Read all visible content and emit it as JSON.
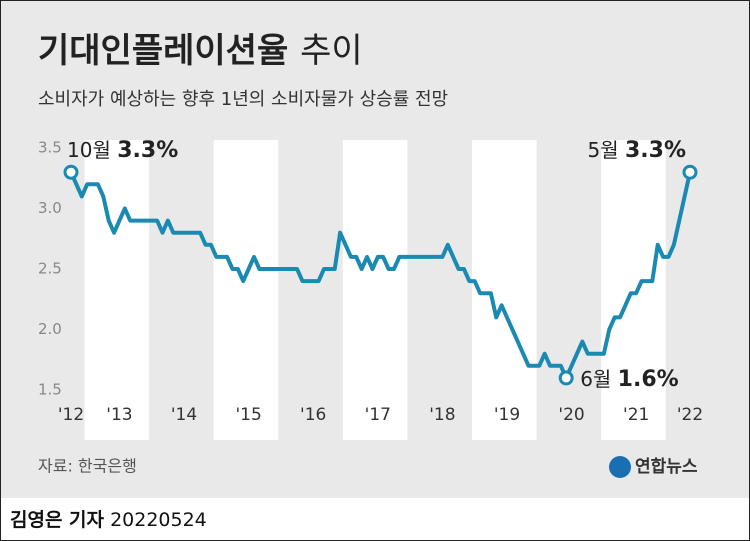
{
  "chart_data": {
    "type": "line",
    "title": "기대인플레이션율",
    "title_suffix": "추이",
    "subtitle": "소비자가 예상하는 향후 1년의 소비자물가 상승률 전망",
    "source": "자료: 한국은행",
    "logo": "연합뉴스",
    "color": "#1a8ab3",
    "ylim": [
      1.5,
      3.5
    ],
    "yticks": [
      1.5,
      {
        "value": 2,
        "label": "2.0"
      },
      2.5,
      {
        "value": 3,
        "label": "3.0"
      },
      3.5
    ],
    "categories": [
      "'12",
      null,
      null,
      null,
      null,
      null,
      null,
      null,
      null,
      "'13",
      null,
      null,
      null,
      null,
      null,
      null,
      null,
      null,
      null,
      null,
      null,
      "'14",
      null,
      null,
      null,
      null,
      null,
      null,
      null,
      null,
      null,
      null,
      null,
      "'15",
      null,
      null,
      null,
      null,
      null,
      null,
      null,
      null,
      null,
      null,
      null,
      "'16",
      null,
      null,
      null,
      null,
      null,
      null,
      null,
      null,
      null,
      null,
      null,
      "'17",
      null,
      null,
      null,
      null,
      null,
      null,
      null,
      null,
      null,
      null,
      null,
      "'18",
      null,
      null,
      null,
      null,
      null,
      null,
      null,
      null,
      null,
      null,
      null,
      "'19",
      null,
      null,
      null,
      null,
      null,
      null,
      null,
      null,
      null,
      null,
      null,
      "'20",
      null,
      null,
      null,
      null,
      null,
      null,
      null,
      null,
      null,
      null,
      null,
      "'21",
      null,
      null,
      null,
      null,
      null,
      null,
      null,
      null,
      null,
      "'22"
    ],
    "values": [
      3.3,
      3.2,
      3.1,
      3.2,
      3.2,
      3.2,
      3.1,
      2.9,
      2.8,
      2.9,
      3.0,
      2.9,
      2.9,
      2.9,
      2.9,
      2.9,
      2.9,
      2.8,
      2.9,
      2.8,
      2.8,
      2.8,
      2.8,
      2.8,
      2.8,
      2.7,
      2.7,
      2.6,
      2.6,
      2.6,
      2.5,
      2.5,
      2.4,
      2.5,
      2.6,
      2.5,
      2.5,
      2.5,
      2.5,
      2.5,
      2.5,
      2.5,
      2.5,
      2.4,
      2.4,
      2.4,
      2.4,
      2.5,
      2.5,
      2.5,
      2.8,
      2.7,
      2.6,
      2.6,
      2.5,
      2.6,
      2.5,
      2.6,
      2.6,
      2.5,
      2.5,
      2.6,
      2.6,
      2.6,
      2.6,
      2.6,
      2.6,
      2.6,
      2.6,
      2.6,
      2.7,
      2.6,
      2.5,
      2.5,
      2.4,
      2.4,
      2.3,
      2.3,
      2.3,
      2.1,
      2.2,
      2.1,
      2.0,
      1.9,
      1.8,
      1.7,
      1.7,
      1.7,
      1.8,
      1.7,
      1.7,
      1.7,
      1.6,
      1.7,
      1.8,
      1.9,
      1.8,
      1.8,
      1.8,
      1.8,
      2.0,
      2.1,
      2.1,
      2.2,
      2.3,
      2.3,
      2.4,
      2.4,
      2.4,
      2.7,
      2.6,
      2.6,
      2.7,
      2.9,
      3.1,
      3.3
    ],
    "value_labels": [
      "3.3%",
      null,
      null,
      null,
      null,
      null,
      null,
      null,
      null,
      null,
      null,
      null,
      null,
      null,
      null,
      null,
      null,
      null,
      null,
      null,
      null,
      null,
      null,
      null,
      null,
      null,
      null,
      null,
      null,
      null,
      null,
      null,
      null,
      null,
      null,
      null,
      null,
      null,
      null,
      null,
      null,
      null,
      null,
      null,
      null,
      null,
      null,
      null,
      null,
      null,
      null,
      null,
      null,
      null,
      null,
      null,
      null,
      null,
      null,
      null,
      null,
      null,
      null,
      null,
      null,
      null,
      null,
      null,
      null,
      null,
      null,
      null,
      null,
      null,
      null,
      null,
      null,
      null,
      null,
      null,
      null,
      null,
      null,
      null,
      null,
      null,
      null,
      null,
      null,
      null,
      null,
      null,
      "1.6%",
      null,
      null,
      null,
      null,
      null,
      null,
      null,
      null,
      null,
      null,
      null,
      null,
      null,
      null,
      null,
      null,
      null,
      null,
      null,
      null,
      null,
      null,
      "3.3%"
    ],
    "month_labels": [
      "10월",
      null,
      null,
      null,
      null,
      null,
      null,
      null,
      null,
      null,
      null,
      null,
      null,
      null,
      null,
      null,
      null,
      null,
      null,
      null,
      null,
      null,
      null,
      null,
      null,
      null,
      null,
      null,
      null,
      null,
      null,
      null,
      null,
      null,
      null,
      null,
      null,
      null,
      null,
      null,
      null,
      null,
      null,
      null,
      null,
      null,
      null,
      null,
      null,
      null,
      null,
      null,
      null,
      null,
      null,
      null,
      null,
      null,
      null,
      null,
      null,
      null,
      null,
      null,
      null,
      null,
      null,
      null,
      null,
      null,
      null,
      null,
      null,
      null,
      null,
      null,
      null,
      null,
      null,
      null,
      null,
      null,
      null,
      null,
      null,
      null,
      null,
      null,
      null,
      null,
      null,
      null,
      "6월",
      null,
      null,
      null,
      null,
      null,
      null,
      null,
      null,
      null,
      null,
      null,
      null,
      null,
      null,
      null,
      null,
      null,
      null,
      null,
      null,
      null,
      null,
      "5월"
    ]
  },
  "byline": {
    "reporter": "김영은 기자",
    "date": "20220524"
  }
}
